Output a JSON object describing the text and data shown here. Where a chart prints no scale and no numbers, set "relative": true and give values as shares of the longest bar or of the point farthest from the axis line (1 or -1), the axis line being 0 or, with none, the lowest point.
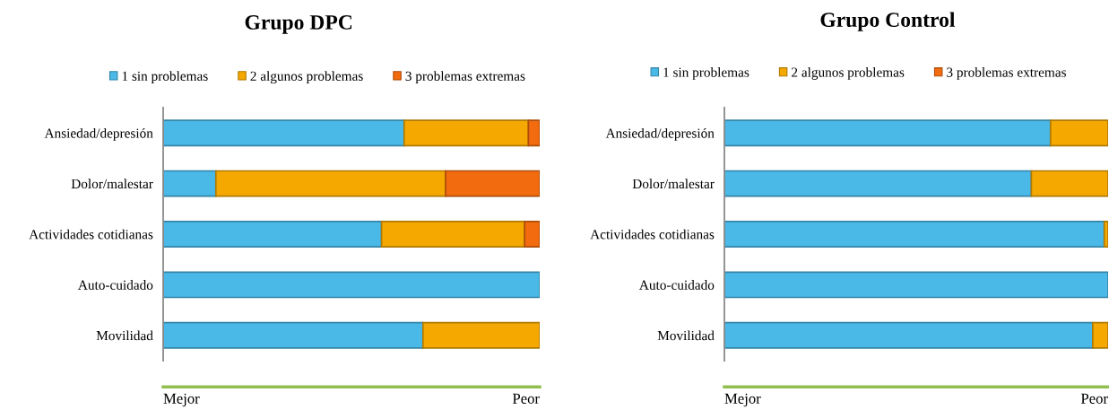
{
  "chart_data": [
    {
      "type": "bar",
      "orientation": "horizontal",
      "stacked": true,
      "relative": true,
      "title": "Grupo DPC",
      "legend": "top",
      "categories": [
        "Ansiedad/depresión",
        "Dolor/malestar",
        "Actividades cotidianas",
        "Auto-cuidado",
        "Movilidad"
      ],
      "series": [
        {
          "name": "1 sin problemas",
          "color": "#4ab9e8",
          "values": [
            0.64,
            0.14,
            0.58,
            1,
            0.69
          ]
        },
        {
          "name": "2 algunos problemas",
          "color": "#f5a900",
          "values": [
            0.33,
            0.61,
            0.38,
            null,
            0.31
          ]
        },
        {
          "name": "3 problemas extremas",
          "color": "#f26b0f",
          "values": [
            0.03,
            0.25,
            0.04,
            null,
            null
          ]
        }
      ],
      "annotations": [
        "Mejor",
        "Peor"
      ]
    },
    {
      "type": "bar",
      "orientation": "horizontal",
      "stacked": true,
      "relative": true,
      "title": "Grupo Control",
      "legend": "top",
      "categories": [
        "Ansiedad/depresión",
        "Dolor/malestar",
        "Actividades cotidianas",
        "Auto-cuidado",
        "Movilidad"
      ],
      "series": [
        {
          "name": "1 sin problemas",
          "color": "#4ab9e8",
          "values": [
            0.85,
            0.8,
            0.99,
            1,
            0.96
          ]
        },
        {
          "name": "2 algunos problemas",
          "color": "#f5a900",
          "values": [
            0.15,
            0.2,
            0.01,
            null,
            0.04
          ]
        },
        {
          "name": "3 problemas extremas",
          "color": "#f26b0f",
          "values": [
            null,
            null,
            null,
            null,
            null
          ]
        }
      ],
      "annotations": [
        "Mejor",
        "Peor"
      ]
    }
  ]
}
